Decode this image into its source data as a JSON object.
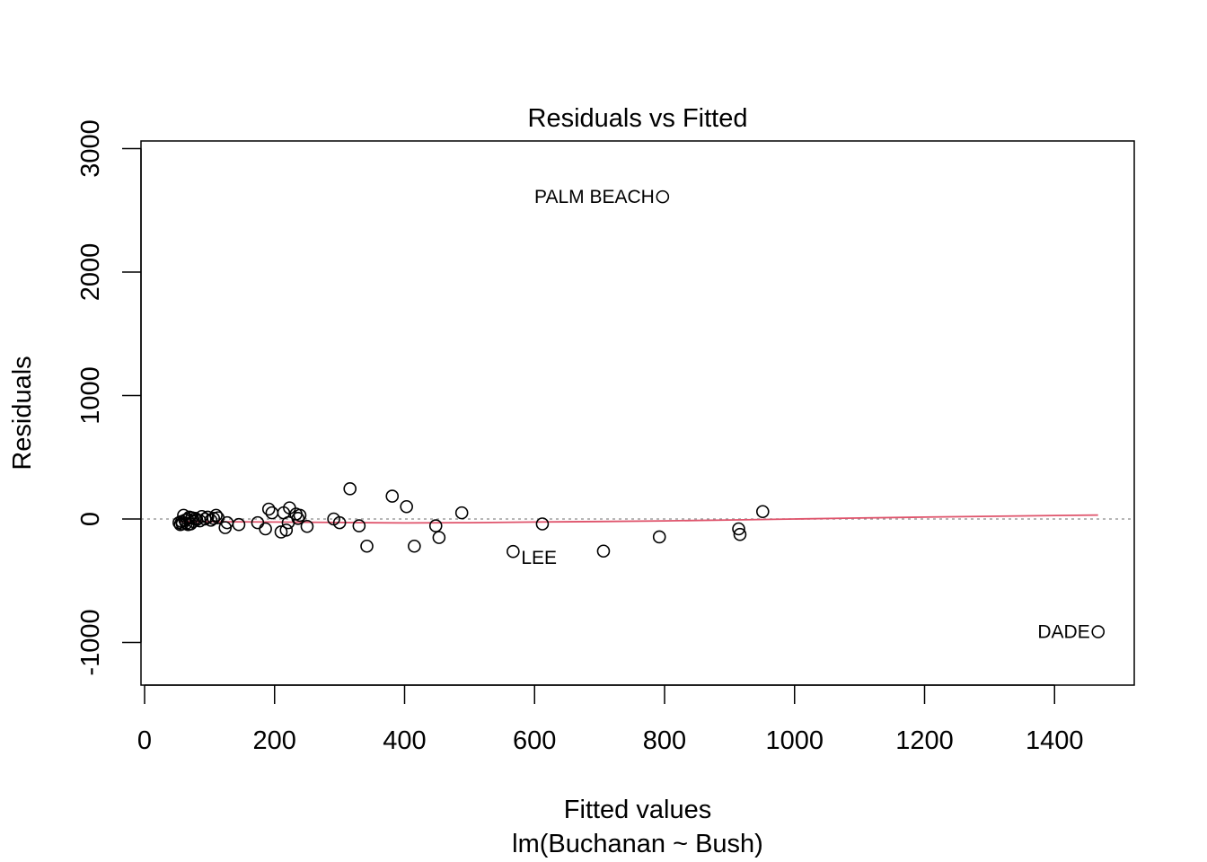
{
  "chart_data": {
    "type": "scatter",
    "title": "Residuals vs Fitted",
    "xlabel": "Fitted values",
    "subtitle": "lm(Buchanan ~ Bush)",
    "ylabel": "Residuals",
    "xlim": [
      0,
      1520
    ],
    "ylim": [
      -1330,
      3080
    ],
    "x_ticks": [
      0,
      200,
      400,
      600,
      800,
      1000,
      1200,
      1400
    ],
    "y_ticks": [
      -1000,
      0,
      1000,
      2000,
      3000
    ],
    "x_tick_labels": [
      "0",
      "200",
      "400",
      "600",
      "800",
      "1000",
      "1200",
      "1400"
    ],
    "y_tick_labels": [
      "-1000",
      "0",
      "1000",
      "2000",
      "3000"
    ],
    "grid": false,
    "reference_line": {
      "y": 0,
      "style": "dotted",
      "color": "#9E9E9E"
    },
    "points": [
      {
        "x": 797,
        "y": 2610,
        "label": "PALM BEACH"
      },
      {
        "x": 1467,
        "y": -913,
        "label": "DADE"
      },
      {
        "x": 567,
        "y": -263,
        "label": "LEE"
      },
      {
        "x": 53,
        "y": -30,
        "label": ""
      },
      {
        "x": 55,
        "y": -45,
        "label": ""
      },
      {
        "x": 57,
        "y": -20,
        "label": ""
      },
      {
        "x": 58,
        "y": -40,
        "label": ""
      },
      {
        "x": 60,
        "y": 30,
        "label": ""
      },
      {
        "x": 62,
        "y": -10,
        "label": ""
      },
      {
        "x": 64,
        "y": -35,
        "label": ""
      },
      {
        "x": 66,
        "y": 0,
        "label": ""
      },
      {
        "x": 67,
        "y": -45,
        "label": ""
      },
      {
        "x": 69,
        "y": 15,
        "label": ""
      },
      {
        "x": 71,
        "y": -40,
        "label": ""
      },
      {
        "x": 73,
        "y": 10,
        "label": ""
      },
      {
        "x": 75,
        "y": -20,
        "label": ""
      },
      {
        "x": 78,
        "y": 5,
        "label": ""
      },
      {
        "x": 80,
        "y": -5,
        "label": ""
      },
      {
        "x": 85,
        "y": -15,
        "label": ""
      },
      {
        "x": 88,
        "y": 20,
        "label": ""
      },
      {
        "x": 93,
        "y": 0,
        "label": ""
      },
      {
        "x": 97,
        "y": 15,
        "label": ""
      },
      {
        "x": 102,
        "y": -10,
        "label": ""
      },
      {
        "x": 106,
        "y": 5,
        "label": ""
      },
      {
        "x": 110,
        "y": 30,
        "label": ""
      },
      {
        "x": 113,
        "y": 10,
        "label": ""
      },
      {
        "x": 124,
        "y": -70,
        "label": ""
      },
      {
        "x": 127,
        "y": -30,
        "label": ""
      },
      {
        "x": 145,
        "y": -45,
        "label": ""
      },
      {
        "x": 174,
        "y": -30,
        "label": ""
      },
      {
        "x": 186,
        "y": -80,
        "label": ""
      },
      {
        "x": 191,
        "y": 80,
        "label": ""
      },
      {
        "x": 196,
        "y": 50,
        "label": ""
      },
      {
        "x": 210,
        "y": -105,
        "label": ""
      },
      {
        "x": 214,
        "y": 50,
        "label": ""
      },
      {
        "x": 218,
        "y": -90,
        "label": ""
      },
      {
        "x": 221,
        "y": -30,
        "label": ""
      },
      {
        "x": 223,
        "y": 90,
        "label": ""
      },
      {
        "x": 233,
        "y": 40,
        "label": ""
      },
      {
        "x": 236,
        "y": 5,
        "label": ""
      },
      {
        "x": 239,
        "y": 30,
        "label": ""
      },
      {
        "x": 250,
        "y": -60,
        "label": ""
      },
      {
        "x": 291,
        "y": 0,
        "label": ""
      },
      {
        "x": 300,
        "y": -30,
        "label": ""
      },
      {
        "x": 316,
        "y": 245,
        "label": ""
      },
      {
        "x": 330,
        "y": -55,
        "label": ""
      },
      {
        "x": 342,
        "y": -220,
        "label": ""
      },
      {
        "x": 381,
        "y": 185,
        "label": ""
      },
      {
        "x": 403,
        "y": 100,
        "label": ""
      },
      {
        "x": 415,
        "y": -220,
        "label": ""
      },
      {
        "x": 448,
        "y": -55,
        "label": ""
      },
      {
        "x": 453,
        "y": -150,
        "label": ""
      },
      {
        "x": 488,
        "y": 50,
        "label": ""
      },
      {
        "x": 612,
        "y": -40,
        "label": ""
      },
      {
        "x": 706,
        "y": -260,
        "label": ""
      },
      {
        "x": 792,
        "y": -145,
        "label": ""
      },
      {
        "x": 914,
        "y": -80,
        "label": ""
      },
      {
        "x": 916,
        "y": -125,
        "label": ""
      },
      {
        "x": 951,
        "y": 60,
        "label": ""
      }
    ],
    "smooth_line": {
      "color": "#DF536B",
      "x": [
        53,
        100,
        200,
        300,
        400,
        500,
        600,
        700,
        800,
        900,
        1000,
        1100,
        1200,
        1300,
        1400,
        1467
      ],
      "y": [
        -20,
        -22,
        -25,
        -28,
        -32,
        -30,
        -25,
        -20,
        -15,
        -8,
        0,
        8,
        15,
        22,
        28,
        32
      ]
    }
  }
}
